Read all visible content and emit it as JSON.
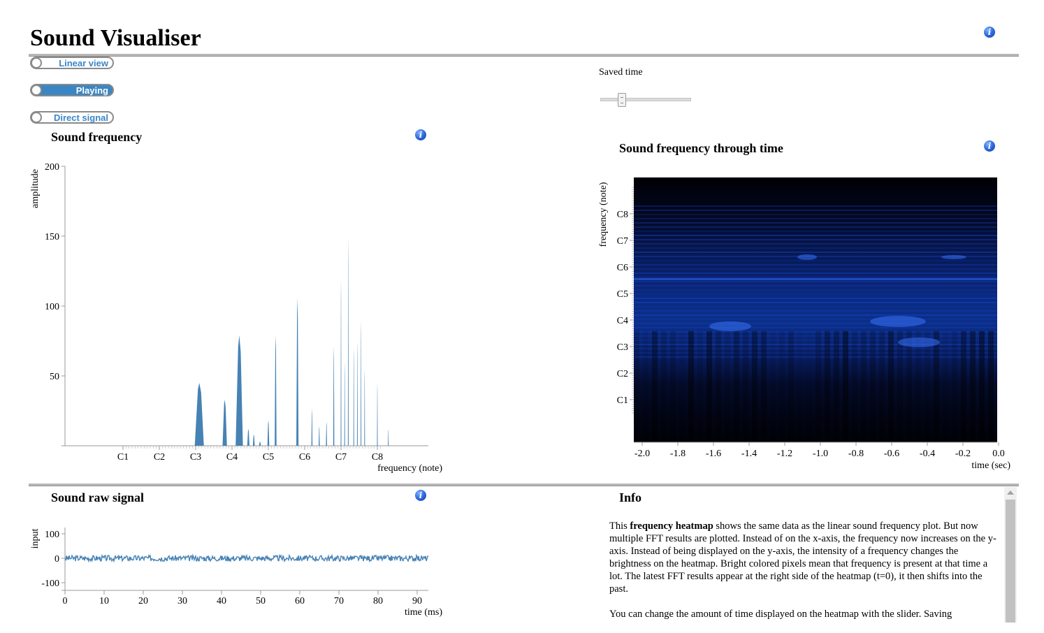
{
  "header": {
    "title": "Sound Visualiser"
  },
  "toggles": [
    {
      "label": "Linear view",
      "on": false
    },
    {
      "label": "Playing",
      "on": true
    },
    {
      "label": "Direct signal",
      "on": false
    }
  ],
  "saved_time": {
    "label": "Saved time",
    "value_fraction": 0.23
  },
  "panels": {
    "frequency": {
      "title": "Sound frequency"
    },
    "heatmap": {
      "title": "Sound frequency through time"
    },
    "raw": {
      "title": "Sound raw signal"
    },
    "info": {
      "title": "Info"
    }
  },
  "info_text": {
    "p1_a": "This ",
    "p1_b": "frequency heatmap",
    "p1_c": " shows the same data as the linear sound frequency plot. But now multiple FFT results are plotted. Instead of on the x-axis, the frequency now increases on the y-axis. Instead of being displayed on the y-axis, the intensity of a frequency changes the brightness on the heatmap. Bright colored pixels mean that frequency is present at that time a lot. The latest FFT results appear at the right side of the heatmap (t=0), it then shifts into the past.",
    "p2": "You can change the amount of time displayed on the heatmap with the slider. Saving"
  },
  "colors": {
    "accent": "#3a86c4",
    "plot": "#4682b4",
    "heatmap_dark": "#000010",
    "heatmap_bright": "#1f5cff"
  },
  "chart_data": [
    {
      "type": "area",
      "xlabel": "frequency (note)",
      "ylabel": "amplitude",
      "ylim": [
        0,
        200
      ],
      "yticks": [
        50,
        100,
        150,
        200
      ],
      "xticks": [
        "C1",
        "C2",
        "C3",
        "C4",
        "C5",
        "C6",
        "C7",
        "C8"
      ],
      "xscale": "log-note",
      "peaks": [
        {
          "note": 3.1,
          "width": 0.25,
          "value": 45
        },
        {
          "note": 3.8,
          "width": 0.12,
          "value": 33
        },
        {
          "note": 4.2,
          "width": 0.2,
          "value": 79
        },
        {
          "note": 4.45,
          "width": 0.06,
          "value": 12
        },
        {
          "note": 4.6,
          "width": 0.05,
          "value": 8
        },
        {
          "note": 4.77,
          "width": 0.05,
          "value": 3
        },
        {
          "note": 5.0,
          "width": 0.05,
          "value": 18
        },
        {
          "note": 5.2,
          "width": 0.05,
          "value": 79
        },
        {
          "note": 5.8,
          "width": 0.06,
          "value": 106
        },
        {
          "note": 6.2,
          "width": 0.03,
          "value": 26
        },
        {
          "note": 6.4,
          "width": 0.03,
          "value": 14
        },
        {
          "note": 6.6,
          "width": 0.03,
          "value": 17
        },
        {
          "note": 6.8,
          "width": 0.03,
          "value": 71
        },
        {
          "note": 7.0,
          "width": 0.02,
          "value": 120
        },
        {
          "note": 7.1,
          "width": 0.02,
          "value": 60
        },
        {
          "note": 7.2,
          "width": 0.02,
          "value": 150
        },
        {
          "note": 7.35,
          "width": 0.02,
          "value": 70
        },
        {
          "note": 7.45,
          "width": 0.02,
          "value": 75
        },
        {
          "note": 7.55,
          "width": 0.02,
          "value": 90
        },
        {
          "note": 7.65,
          "width": 0.02,
          "value": 55
        },
        {
          "note": 8.0,
          "width": 0.02,
          "value": 45
        },
        {
          "note": 8.3,
          "width": 0.02,
          "value": 12
        }
      ]
    },
    {
      "type": "heatmap",
      "xlabel": "time (sec)",
      "ylabel": "frequency (note)",
      "xlim": [
        -2.0,
        0.0
      ],
      "xticks": [
        "-2.0",
        "-1.8",
        "-1.6",
        "-1.4",
        "-1.2",
        "-1.0",
        "-0.8",
        "-0.6",
        "-0.4",
        "-0.2",
        "0.0"
      ],
      "yticks": [
        "C1",
        "C2",
        "C3",
        "C4",
        "C5",
        "C6",
        "C7",
        "C8"
      ]
    },
    {
      "type": "line",
      "xlabel": "time (ms)",
      "ylabel": "input",
      "xlim": [
        0,
        93
      ],
      "ylim": [
        -128,
        128
      ],
      "xticks": [
        "0",
        "10",
        "20",
        "30",
        "40",
        "50",
        "60",
        "70",
        "80",
        "90"
      ],
      "yticks": [
        "100",
        "0",
        "-100"
      ],
      "signal_amplitude": 12
    }
  ]
}
